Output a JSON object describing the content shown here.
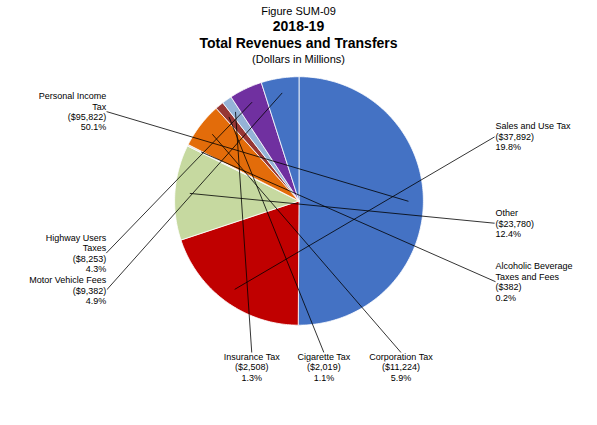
{
  "chart_data": {
    "type": "pie",
    "supertitle": "Figure SUM-09",
    "title": [
      "2018-19",
      "Total Revenues and Transfers"
    ],
    "subtitle": "(Dollars in Millions)",
    "categories": [
      "Personal Income\nTax",
      "Sales and Use Tax",
      "Other",
      "Alcoholic Beverage\nTaxes and Fees",
      "Corporation Tax",
      "Cigarette Tax",
      "Insurance Tax",
      "Highway Users\nTaxes",
      "Motor Vehicle Fees"
    ],
    "values": [
      50.1,
      19.8,
      12.4,
      0.2,
      5.9,
      1.1,
      1.3,
      4.3,
      4.9
    ],
    "value_labels": [
      "50.1%",
      "19.8%",
      "12.4%",
      "0.2%",
      "5.9%",
      "1.1%",
      "1.3%",
      "4.3%",
      "4.9%"
    ],
    "amounts": [
      95822,
      37892,
      23780,
      382,
      11224,
      2019,
      2508,
      8253,
      9382
    ],
    "amount_labels": [
      "($95,822)",
      "($37,892)",
      "($23,780)",
      "($382)",
      "($11,224)",
      "($2,019)",
      "($2,508)",
      "($8,253)",
      "($9,382)"
    ],
    "colors": [
      "#4472C4",
      "#C00000",
      "#C6D9A0",
      "#D9D9D9",
      "#E36C0A",
      "#963634",
      "#95B3D7",
      "#7030A0",
      "#4472C4"
    ],
    "data_labels": true
  }
}
